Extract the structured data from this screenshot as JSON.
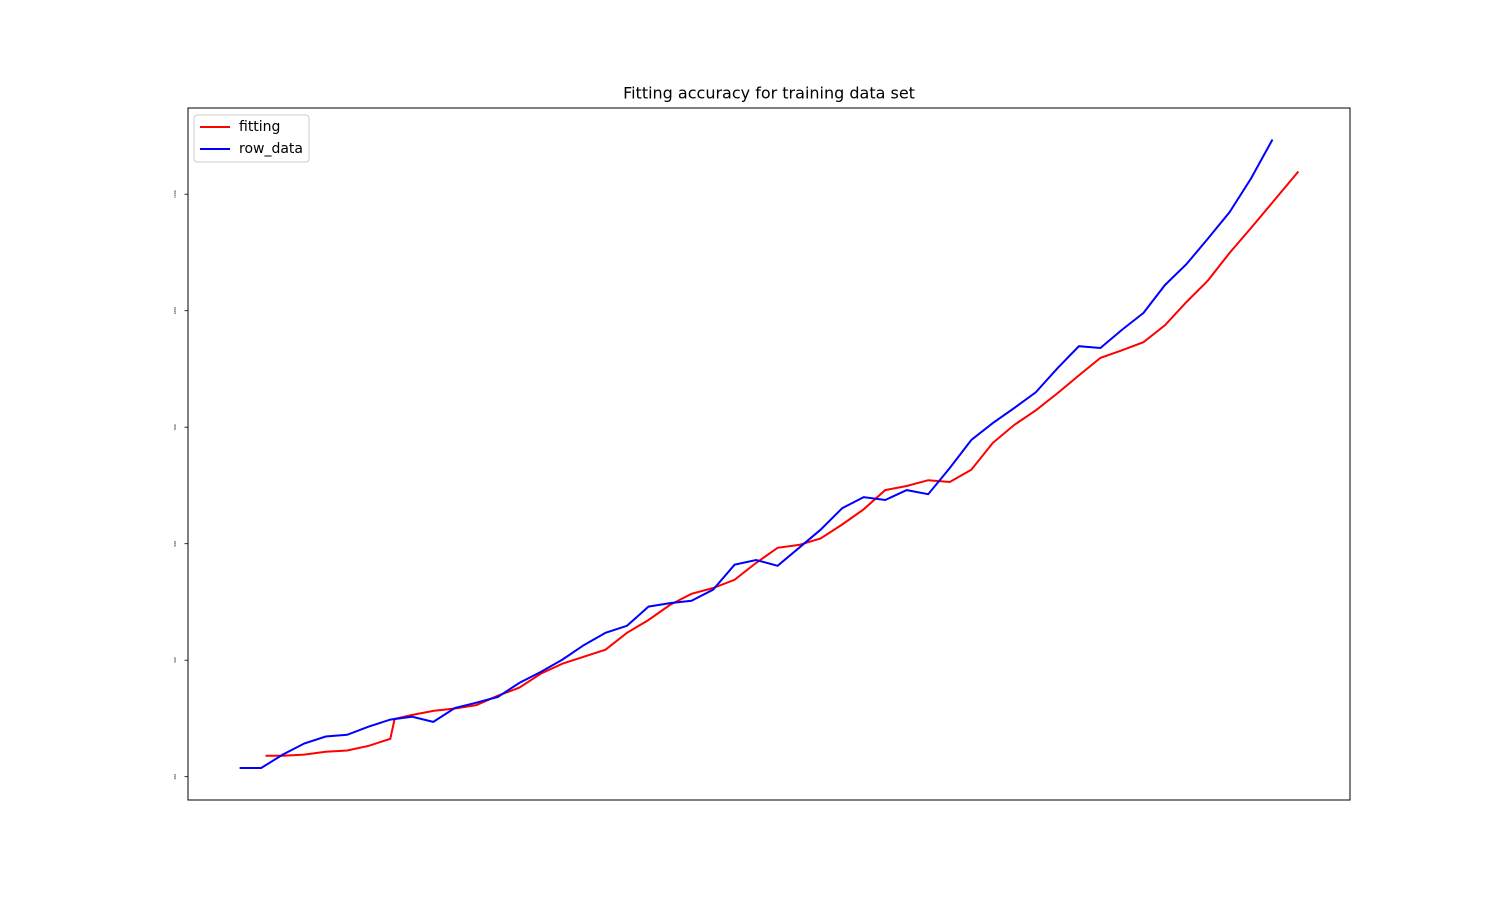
{
  "chart_data": {
    "type": "line",
    "title": "Fitting accuracy for training data set",
    "series": [
      {
        "name": "fitting",
        "color": "#ff0000",
        "x": [
          6,
          10,
          15,
          20,
          25,
          30,
          35,
          36,
          40,
          45,
          50,
          55,
          60,
          65,
          70,
          75,
          80,
          85,
          90,
          95,
          100,
          105,
          110,
          115,
          120,
          125,
          130,
          135,
          140,
          145,
          150,
          155,
          160,
          165,
          170,
          175,
          180,
          185,
          190,
          195,
          200,
          205,
          210,
          215,
          220,
          225,
          230,
          235,
          240,
          246
        ],
        "values": [
          236,
          236,
          238,
          243,
          245,
          253,
          265,
          299,
          306,
          313,
          317,
          323,
          339,
          353,
          377,
          394,
          406,
          418,
          447,
          469,
          495,
          514,
          524,
          538,
          567,
          593,
          598,
          609,
          633,
          659,
          692,
          699,
          709,
          706,
          727,
          773,
          804,
          829,
          858,
          889,
          919,
          932,
          946,
          975,
          1015,
          1052,
          1099,
          1142,
          1186,
          1239
        ]
      },
      {
        "name": "row_data",
        "color": "#0000ff",
        "x": [
          0,
          5,
          10,
          15,
          20,
          25,
          30,
          35,
          40,
          45,
          50,
          55,
          60,
          65,
          70,
          75,
          80,
          85,
          90,
          95,
          100,
          105,
          110,
          115,
          120,
          125,
          130,
          135,
          140,
          145,
          150,
          155,
          160,
          165,
          170,
          175,
          180,
          185,
          190,
          195,
          200,
          205,
          210,
          215,
          220,
          225,
          230,
          235,
          240
        ],
        "values": [
          215,
          215,
          238,
          257,
          269,
          272,
          286,
          298,
          303,
          294,
          318,
          327,
          337,
          361,
          380,
          401,
          426,
          447,
          459,
          492,
          498,
          502,
          521,
          564,
          572,
          562,
          593,
          624,
          661,
          680,
          675,
          692,
          685,
          730,
          778,
          807,
          833,
          860,
          901,
          939,
          936,
          967,
          996,
          1044,
          1080,
          1124,
          1169,
          1227,
          1294
        ]
      }
    ],
    "xlim": [
      -12,
      258
    ],
    "ylim": [
      160,
      1348
    ],
    "yticks": [
      200,
      400,
      600,
      800,
      1000,
      1200
    ],
    "legend": "upper left"
  }
}
